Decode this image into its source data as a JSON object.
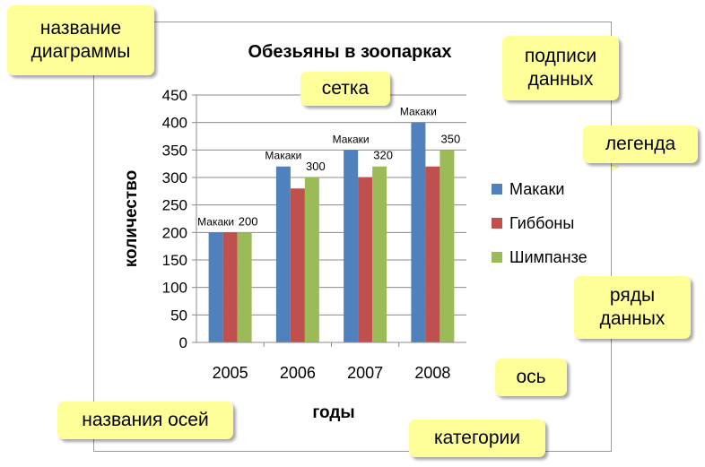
{
  "chart_data": {
    "type": "bar",
    "title": "Обезьяны в зоопарках",
    "xlabel": "годы",
    "ylabel": "количество",
    "categories": [
      "2005",
      "2006",
      "2007",
      "2008"
    ],
    "ylim": [
      0,
      450
    ],
    "ytick_step": 50,
    "grid": true,
    "legend_position": "right",
    "series": [
      {
        "name": "Макаки",
        "color": "#4f81bd",
        "values": [
          200,
          320,
          350,
          400
        ]
      },
      {
        "name": "Гиббоны",
        "color": "#c0504d",
        "values": [
          200,
          280,
          300,
          320
        ]
      },
      {
        "name": "Шимпанзе",
        "color": "#9bbb59",
        "values": [
          200,
          300,
          320,
          350
        ]
      }
    ],
    "data_labels": {
      "macaque_text": "Макаки"
    }
  },
  "callouts": {
    "chart_title": "название диаграммы",
    "grid": "сетка",
    "data_labels": "подписи данных",
    "legend": "легенда",
    "data_series": "ряды данных",
    "axis": "ось",
    "axis_titles": "названия осей",
    "categories": "категории"
  }
}
